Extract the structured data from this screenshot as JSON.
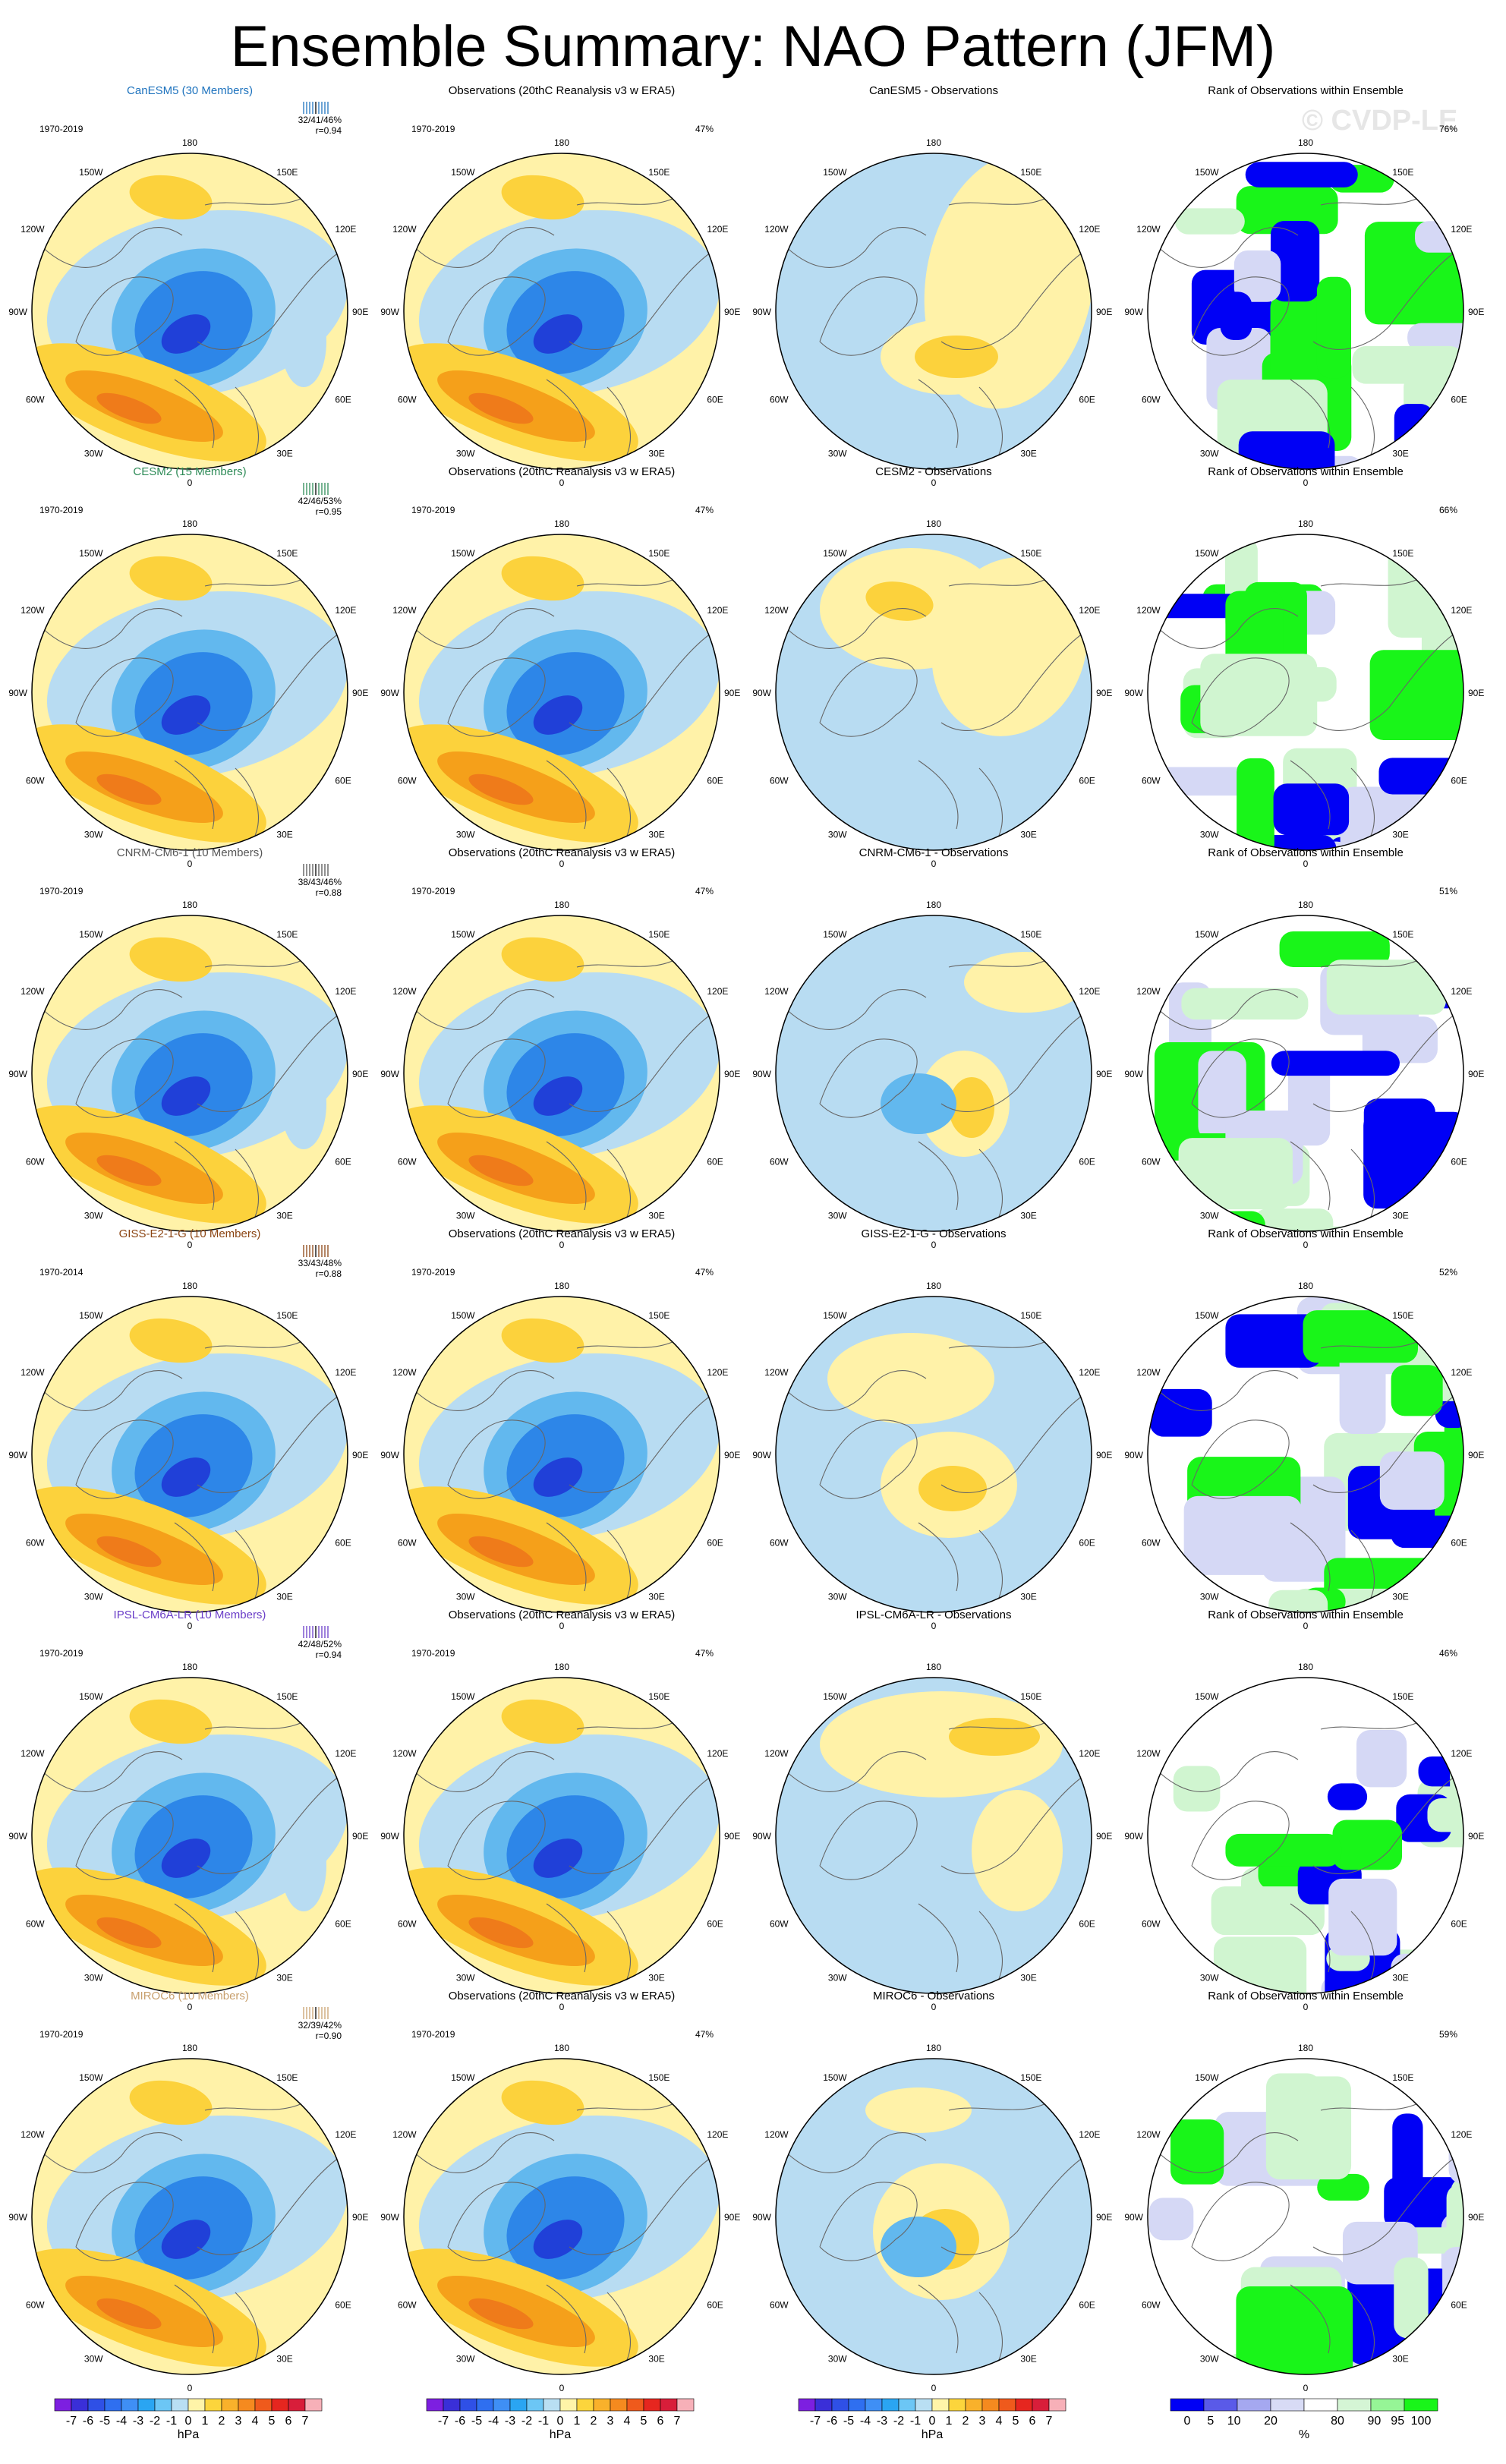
{
  "title": "Ensemble Summary: NAO Pattern (JFM)",
  "watermark": "© CVDP-LE",
  "lon_labels": {
    "top": "180",
    "bottom": "0",
    "ul": "150W",
    "ur": "150E",
    "ul2": "120W",
    "ur2": "120E",
    "left": "90W",
    "right": "90E",
    "ll": "60W",
    "lr": "60E",
    "bl": "30W",
    "br": "30E"
  },
  "colors": {
    "pos_light": "#fff2a8",
    "pos_mid": "#fcd23c",
    "pos_strong": "#f5a01a",
    "pos_max": "#ef7b1a",
    "neg_light": "#b8dcf2",
    "neg_mid": "#62b8ee",
    "neg_strong": "#2d86e8",
    "neg_max": "#2040d8",
    "rank_low": "#0000f5",
    "rank_lowmid": "#d5d8f5",
    "rank_high": "#19f519",
    "rank_highmid": "#d0f5d0"
  },
  "columns": [
    "model",
    "observations",
    "difference",
    "rank"
  ],
  "rows": [
    {
      "model_title": "CanESM5 (30 Members)",
      "model_color": "#1e73be",
      "period": "1970-2019",
      "stats_pct": "32/41/46%",
      "stats_r": "r=0.94",
      "obs_title": "Observations (20thC Reanalysis v3 w ERA5)",
      "obs_period": "1970-2019",
      "obs_pct": "47%",
      "diff_title": "CanESM5 - Observations",
      "rank_title": "Rank of Observations within Ensemble",
      "rank_pct": "76%"
    },
    {
      "model_title": "CESM2 (15 Members)",
      "model_color": "#2e8b57",
      "period": "1970-2019",
      "stats_pct": "42/46/53%",
      "stats_r": "r=0.95",
      "obs_title": "Observations (20thC Reanalysis v3 w ERA5)",
      "obs_period": "1970-2019",
      "obs_pct": "47%",
      "diff_title": "CESM2 - Observations",
      "rank_title": "Rank of Observations within Ensemble",
      "rank_pct": "66%"
    },
    {
      "model_title": "CNRM-CM6-1 (10 Members)",
      "model_color": "#555555",
      "period": "1970-2019",
      "stats_pct": "38/43/46%",
      "stats_r": "r=0.88",
      "obs_title": "Observations (20thC Reanalysis v3 w ERA5)",
      "obs_period": "1970-2019",
      "obs_pct": "47%",
      "diff_title": "CNRM-CM6-1 - Observations",
      "rank_title": "Rank of Observations within Ensemble",
      "rank_pct": "51%"
    },
    {
      "model_title": "GISS-E2-1-G (10 Members)",
      "model_color": "#8b4513",
      "period": "1970-2014",
      "stats_pct": "33/43/48%",
      "stats_r": "r=0.88",
      "obs_title": "Observations (20thC Reanalysis v3 w ERA5)",
      "obs_period": "1970-2019",
      "obs_pct": "47%",
      "diff_title": "GISS-E2-1-G - Observations",
      "rank_title": "Rank of Observations within Ensemble",
      "rank_pct": "52%"
    },
    {
      "model_title": "IPSL-CM6A-LR (10 Members)",
      "model_color": "#6a3dc8",
      "period": "1970-2019",
      "stats_pct": "42/48/52%",
      "stats_r": "r=0.94",
      "obs_title": "Observations (20thC Reanalysis v3 w ERA5)",
      "obs_period": "1970-2019",
      "obs_pct": "47%",
      "diff_title": "IPSL-CM6A-LR - Observations",
      "rank_title": "Rank of Observations within Ensemble",
      "rank_pct": "46%"
    },
    {
      "model_title": "MIROC6 (10 Members)",
      "model_color": "#c8a06e",
      "period": "1970-2019",
      "stats_pct": "32/39/42%",
      "stats_r": "r=0.90",
      "obs_title": "Observations (20thC Reanalysis v3 w ERA5)",
      "obs_period": "1970-2019",
      "obs_pct": "47%",
      "diff_title": "MIROC6 - Observations",
      "rank_title": "Rank of Observations within Ensemble",
      "rank_pct": "59%"
    }
  ],
  "colorbars": {
    "hpa_labels": [
      "-7",
      "-6",
      "-5",
      "-4",
      "-3",
      "-2",
      "-1",
      "0",
      "1",
      "2",
      "3",
      "4",
      "5",
      "6",
      "7"
    ],
    "hpa_colors": [
      "#7d1fe0",
      "#3a2fd8",
      "#2f50e6",
      "#2f6ff0",
      "#3f8ff5",
      "#2aa5f2",
      "#6cc6f5",
      "#b9dff3",
      "#fff4a8",
      "#fcd53c",
      "#f9b12b",
      "#f58a1f",
      "#ef5a1c",
      "#e6261f",
      "#d81e3a",
      "#f7b0b8"
    ],
    "hpa_unit": "hPa",
    "rank_labels": [
      "0",
      "5",
      "10",
      "20",
      "80",
      "90",
      "95",
      "100"
    ],
    "rank_colors": [
      "#0000f5",
      "#5a5ae8",
      "#a5a8f0",
      "#d8dbf5",
      "#ffffff",
      "#d5f5d5",
      "#96f596",
      "#19f519"
    ],
    "rank_unit": "%"
  }
}
